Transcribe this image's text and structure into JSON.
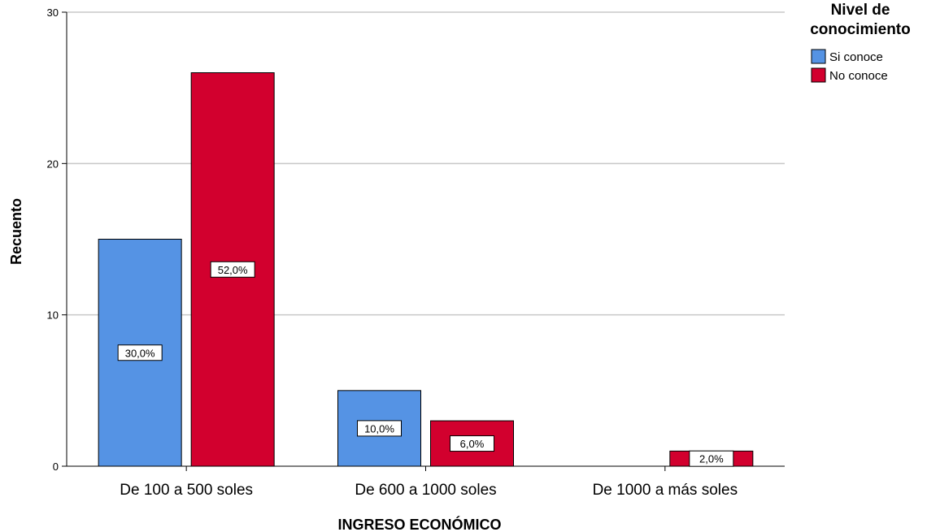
{
  "chart_data": {
    "type": "bar",
    "xlabel": "INGRESO ECONÓMICO",
    "ylabel": "Recuento",
    "ylim": [
      0,
      30
    ],
    "yticks": [
      0,
      10,
      20,
      30
    ],
    "grid": true,
    "legend_position": "top-right",
    "legend_title_lines": [
      "Nivel de",
      "conocimiento"
    ],
    "categories": [
      "De 100 a 500 soles",
      "De 600 a 1000 soles",
      "De 1000 a más soles"
    ],
    "series": [
      {
        "name": "Si conoce",
        "color": "#5593E4",
        "values": [
          15,
          5,
          0
        ],
        "labels": [
          "30,0%",
          "10,0%",
          ""
        ]
      },
      {
        "name": "No conoce",
        "color": "#D2002E",
        "values": [
          26,
          3,
          1
        ],
        "labels": [
          "52,0%",
          "6,0%",
          "2,0%"
        ]
      }
    ]
  }
}
